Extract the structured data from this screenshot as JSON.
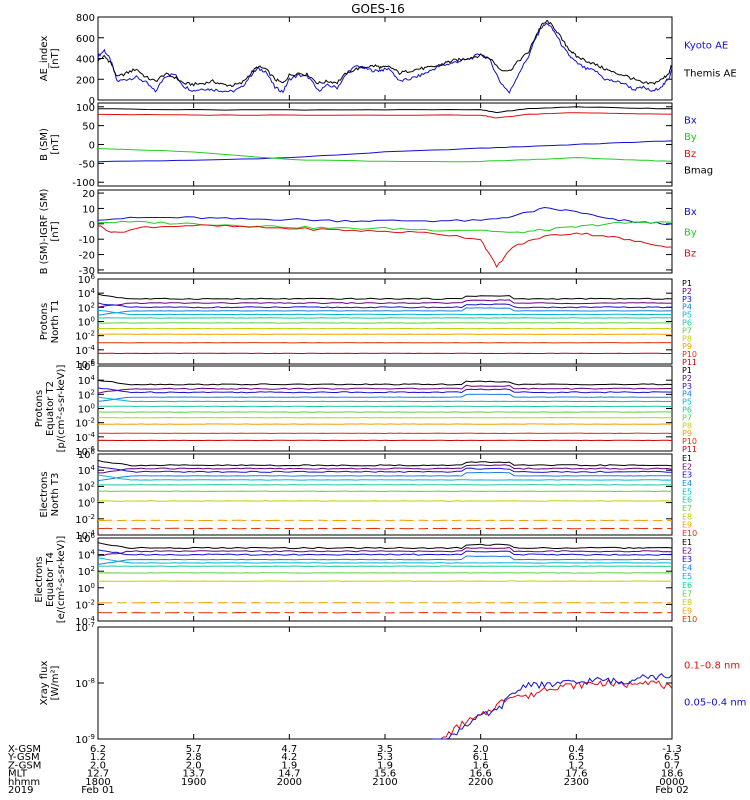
{
  "title": "GOES-16",
  "colors": {
    "black": "#000000",
    "blue": "#1010d0",
    "green": "#22cc22",
    "red": "#dd1010",
    "traceNoise": "n/a"
  },
  "chart_data": [
    {
      "type": "line",
      "panel": "ae",
      "ylabel": [
        "AE_index",
        "[nT]"
      ],
      "ylim": [
        0,
        800
      ],
      "yticks": [
        "0",
        "200",
        "400",
        "600",
        "800"
      ],
      "legend": [
        "Kyoto AE",
        "Themis AE"
      ],
      "series": [
        {
          "name": "Kyoto AE",
          "color": "#1010d0",
          "x": [
            0,
            8,
            16,
            24,
            36,
            48,
            60,
            72,
            84,
            96,
            108,
            120,
            132,
            144,
            156,
            168,
            180,
            192,
            200,
            210,
            222,
            232,
            240,
            252,
            264,
            276,
            288,
            300,
            312,
            324,
            336,
            348,
            356,
            366,
            378,
            390,
            402,
            414,
            426,
            436,
            446,
            456,
            468,
            480,
            492,
            504,
            516,
            528,
            540,
            548,
            556,
            564,
            574,
            584,
            592,
            600,
            612,
            624,
            636,
            648,
            660,
            672,
            684,
            696,
            708,
            716,
            720
          ],
          "y": [
            420,
            480,
            380,
            180,
            200,
            220,
            170,
            80,
            230,
            250,
            130,
            90,
            110,
            100,
            90,
            80,
            120,
            240,
            300,
            280,
            120,
            80,
            200,
            240,
            220,
            90,
            140,
            120,
            250,
            330,
            300,
            280,
            290,
            300,
            180,
            200,
            230,
            270,
            320,
            340,
            360,
            380,
            400,
            450,
            380,
            180,
            70,
            260,
            420,
            580,
            700,
            740,
            640,
            500,
            420,
            360,
            300,
            280,
            200,
            180,
            160,
            100,
            120,
            80,
            140,
            200,
            320
          ]
        },
        {
          "name": "Themis AE",
          "color": "#000000",
          "x": [
            0,
            8,
            16,
            24,
            36,
            48,
            60,
            72,
            84,
            96,
            108,
            120,
            132,
            144,
            156,
            168,
            180,
            192,
            200,
            210,
            222,
            232,
            240,
            252,
            264,
            276,
            288,
            300,
            312,
            324,
            336,
            348,
            356,
            366,
            378,
            390,
            402,
            414,
            426,
            436,
            446,
            456,
            468,
            480,
            492,
            504,
            516,
            528,
            540,
            548,
            556,
            564,
            574,
            584,
            592,
            600,
            612,
            624,
            636,
            648,
            660,
            672,
            684,
            696,
            708,
            716,
            720
          ],
          "y": [
            380,
            420,
            360,
            220,
            260,
            300,
            220,
            180,
            250,
            220,
            160,
            150,
            160,
            180,
            150,
            140,
            160,
            260,
            320,
            300,
            200,
            160,
            240,
            260,
            240,
            160,
            180,
            170,
            260,
            300,
            320,
            330,
            310,
            320,
            260,
            280,
            300,
            310,
            330,
            360,
            380,
            390,
            410,
            430,
            400,
            300,
            280,
            380,
            460,
            600,
            720,
            760,
            680,
            560,
            480,
            420,
            380,
            340,
            300,
            260,
            240,
            200,
            160,
            160,
            200,
            260,
            340
          ]
        }
      ]
    },
    {
      "type": "line",
      "panel": "bsm",
      "ylabel": [
        "B (SM)",
        "[nT]"
      ],
      "ylim": [
        -110,
        110
      ],
      "yticks": [
        "100",
        "50",
        "0",
        "-50",
        "-100"
      ],
      "legend": [
        "Bx",
        "By",
        "Bz",
        "Bmag"
      ],
      "series": [
        {
          "name": "Bx",
          "color": "#1010d0",
          "x": [
            0,
            120,
            240,
            360,
            480,
            540,
            600,
            660,
            720
          ],
          "y": [
            -45,
            -42,
            -35,
            -20,
            -10,
            -5,
            0,
            5,
            10
          ]
        },
        {
          "name": "By",
          "color": "#22cc22",
          "x": [
            0,
            120,
            240,
            360,
            480,
            540,
            600,
            660,
            720
          ],
          "y": [
            -10,
            -20,
            -40,
            -45,
            -45,
            -40,
            -35,
            -40,
            -45
          ]
        },
        {
          "name": "Bz",
          "color": "#dd1010",
          "x": [
            0,
            120,
            240,
            360,
            480,
            500,
            540,
            600,
            660,
            720
          ],
          "y": [
            80,
            78,
            78,
            78,
            78,
            70,
            80,
            85,
            82,
            80
          ]
        },
        {
          "name": "Bmag",
          "color": "#000000",
          "x": [
            0,
            120,
            240,
            360,
            480,
            500,
            540,
            600,
            660,
            720
          ],
          "y": [
            95,
            92,
            92,
            92,
            92,
            85,
            95,
            100,
            97,
            95
          ]
        }
      ]
    },
    {
      "type": "line",
      "panel": "bigrf",
      "ylabel": [
        "B (SM)-IGRF (SM)",
        "[nT]"
      ],
      "ylim": [
        -32,
        22
      ],
      "yticks": [
        "20",
        "10",
        "0",
        "-10",
        "-20",
        "-30"
      ],
      "legend": [
        "Bx",
        "By",
        "Bz"
      ],
      "series": [
        {
          "name": "Bx",
          "color": "#1010d0",
          "x": [
            0,
            60,
            120,
            180,
            240,
            300,
            360,
            420,
            480,
            520,
            560,
            600,
            640,
            680,
            720
          ],
          "y": [
            3,
            4,
            4,
            3,
            3,
            2,
            2,
            2,
            2,
            5,
            10,
            8,
            3,
            1,
            0
          ]
        },
        {
          "name": "By",
          "color": "#22cc22",
          "x": [
            0,
            60,
            120,
            180,
            240,
            300,
            360,
            420,
            480,
            520,
            560,
            600,
            640,
            680,
            720
          ],
          "y": [
            1,
            1,
            0,
            -1,
            -2,
            -3,
            -3,
            -4,
            -4,
            -6,
            -4,
            -2,
            0,
            1,
            1
          ]
        },
        {
          "name": "Bz",
          "color": "#dd1010",
          "x": [
            0,
            20,
            60,
            120,
            180,
            240,
            300,
            360,
            420,
            480,
            500,
            520,
            560,
            600,
            640,
            680,
            720
          ],
          "y": [
            -1,
            -6,
            -2,
            -1,
            -2,
            -3,
            -4,
            -5,
            -6,
            -10,
            -28,
            -15,
            -8,
            -6,
            -8,
            -12,
            -15
          ]
        }
      ]
    },
    {
      "type": "line",
      "panel": "protons1",
      "ylabel": [
        "Protons",
        "North T1"
      ],
      "ylim_log": [
        -6,
        6
      ],
      "yticks": [
        "10^6",
        "10^4",
        "10^2",
        "10^0",
        "10^-2",
        "10^-4",
        "10^-6"
      ],
      "legend": [
        "P1",
        "P2",
        "P3",
        "P4",
        "P5",
        "P6",
        "P7",
        "P8",
        "P9",
        "P10",
        "P11"
      ],
      "levels": [
        3.2,
        2.6,
        2.0,
        1.5,
        1.0,
        0.5,
        -0.2,
        -1.0,
        -1.8,
        -3.0,
        -4.5
      ]
    },
    {
      "type": "line",
      "panel": "protons2",
      "ylabel": [
        "Protons",
        "Equator T2",
        "[p/(cm²-s-sr-keV)]"
      ],
      "ylim_log": [
        -6,
        6
      ],
      "yticks": [
        "10^6",
        "10^4",
        "10^2",
        "10^0",
        "10^-2",
        "10^-4",
        "10^-6"
      ],
      "legend": [
        "P1",
        "P2",
        "P3",
        "P4",
        "P5",
        "P6",
        "P7",
        "P8",
        "P9",
        "P10",
        "P11"
      ],
      "levels": [
        3.4,
        2.8,
        2.3,
        1.6,
        1.0,
        0.3,
        -0.5,
        -1.3,
        -2.2,
        -3.5,
        -4.5
      ]
    },
    {
      "type": "line",
      "panel": "electrons1",
      "ylabel": [
        "Electrons",
        "North T3"
      ],
      "ylim_log": [
        -4,
        6
      ],
      "yticks": [
        "10^6",
        "10^4",
        "10^2",
        "10^0",
        "10^-2",
        "10^-4"
      ],
      "legend": [
        "E1",
        "E2",
        "E3",
        "E4",
        "E5",
        "E6",
        "E7",
        "E8",
        "E9",
        "E10"
      ],
      "levels": [
        4.6,
        4.2,
        3.8,
        3.3,
        2.8,
        2.2,
        1.4,
        0.2,
        -2.2,
        -3.2
      ]
    },
    {
      "type": "line",
      "panel": "electrons2",
      "ylabel": [
        "Electrons",
        "Equator T4",
        "[e/(cm²-s-sr-keV)]"
      ],
      "ylim_log": [
        -4,
        6
      ],
      "yticks": [
        "10^6",
        "10^4",
        "10^2",
        "10^0",
        "10^-2",
        "10^-4"
      ],
      "legend": [
        "E1",
        "E2",
        "E3",
        "E4",
        "E5",
        "E6",
        "E7",
        "E8",
        "E9",
        "E10"
      ],
      "levels": [
        4.8,
        4.4,
        4.0,
        3.4,
        3.0,
        2.6,
        1.8,
        0.8,
        -1.8,
        -3.0
      ]
    },
    {
      "type": "line",
      "panel": "xray",
      "ylabel": [
        "Xray flux",
        "[W/m²]"
      ],
      "ylim_log": [
        -9,
        -7
      ],
      "yticks": [
        "10^-7",
        "10^-8",
        "10^-9"
      ],
      "legend": [
        "0.1–0.8 nm",
        "0.05–0.4 nm"
      ],
      "series": [
        {
          "name": "0.1–0.8 nm",
          "color": "#dd1010",
          "x": [
            420,
            440,
            460,
            480,
            500,
            520,
            540,
            560,
            580,
            600,
            620,
            640,
            660,
            680,
            700,
            720
          ],
          "y": [
            -9.2,
            -8.9,
            -8.7,
            -8.6,
            -8.4,
            -8.2,
            -8.25,
            -8.1,
            -8.05,
            -8.05,
            -8.0,
            -8.0,
            -8.05,
            -7.95,
            -8.0,
            -8.1
          ]
        },
        {
          "name": "0.05–0.4 nm",
          "color": "#1010d0",
          "x": [
            420,
            440,
            460,
            480,
            500,
            520,
            540,
            560,
            580,
            600,
            620,
            640,
            660,
            680,
            700,
            720
          ],
          "y": [
            -9.3,
            -9.0,
            -8.75,
            -8.6,
            -8.5,
            -8.2,
            -8.0,
            -8.05,
            -8.0,
            -8.0,
            -7.95,
            -7.95,
            -8.0,
            -7.85,
            -7.9,
            -7.85
          ]
        }
      ]
    }
  ],
  "footer": {
    "labels": [
      "X-GSM",
      "Y-GSM",
      "Z-GSM",
      "MLT",
      "hhmm",
      "2019"
    ],
    "columns": [
      [
        "6.2",
        "1.2",
        "2.0",
        "12.7",
        "1800",
        "Feb 01"
      ],
      [
        "5.7",
        "2.8",
        "2.0",
        "13.7",
        "1900",
        ""
      ],
      [
        "4.7",
        "4.2",
        "1.9",
        "14.7",
        "2000",
        ""
      ],
      [
        "3.5",
        "5.3",
        "1.9",
        "15.6",
        "2100",
        ""
      ],
      [
        "2.0",
        "6.1",
        "1.6",
        "16.6",
        "2200",
        ""
      ],
      [
        "0.4",
        "6.5",
        "1.2",
        "17.6",
        "2300",
        ""
      ],
      [
        "-1.3",
        "6.5",
        "0.7",
        "18.6",
        "0000",
        "Feb 02"
      ]
    ]
  }
}
